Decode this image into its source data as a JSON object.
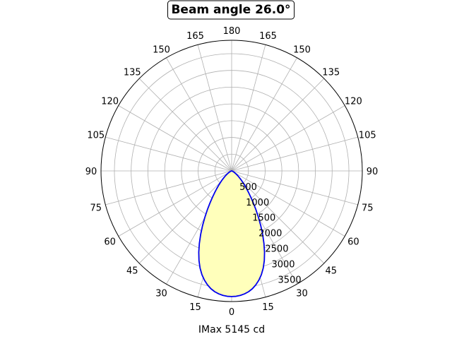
{
  "chart_data": {
    "type": "polar-line",
    "title": "Beam angle 26.0°",
    "xlabel": "IMax 5145 cd",
    "angle_tick_labels": [
      "0",
      "15",
      "30",
      "45",
      "60",
      "75",
      "90",
      "105",
      "120",
      "135",
      "150",
      "165",
      "180",
      "165",
      "150",
      "135",
      "120",
      "105",
      "90",
      "75",
      "60",
      "45",
      "30",
      "15"
    ],
    "radial_ticks": [
      500,
      1000,
      1500,
      2000,
      2500,
      3000,
      3500
    ],
    "radial_tick_labels": [
      "500",
      "1000",
      "1500",
      "2000",
      "2500",
      "3000",
      "3500"
    ],
    "rlim": [
      0,
      3900
    ],
    "grid": true,
    "zero_direction": "bottom",
    "series": [
      {
        "angles_deg": [
          0,
          2,
          4,
          6,
          8,
          10,
          12,
          14,
          16,
          18,
          20,
          22,
          24,
          26,
          28,
          30,
          32,
          34,
          36,
          38,
          40,
          42,
          44,
          46,
          48,
          50,
          52,
          54,
          56,
          58,
          60,
          62,
          64,
          66,
          68,
          70,
          72,
          74,
          76,
          78,
          80,
          82,
          84,
          86,
          88,
          90
        ],
        "values": [
          3750,
          3745,
          3725,
          3690,
          3640,
          3570,
          3475,
          3360,
          3220,
          3050,
          2850,
          2620,
          2370,
          2110,
          1850,
          1600,
          1370,
          1160,
          980,
          825,
          695,
          585,
          490,
          410,
          340,
          280,
          230,
          185,
          150,
          120,
          95,
          75,
          58,
          44,
          32,
          23,
          16,
          11,
          7,
          4,
          2,
          1,
          0.5,
          0.2,
          0,
          0
        ],
        "symmetric": true,
        "line_color": "#0000ee",
        "fill_color": "#ffffbb"
      }
    ]
  }
}
